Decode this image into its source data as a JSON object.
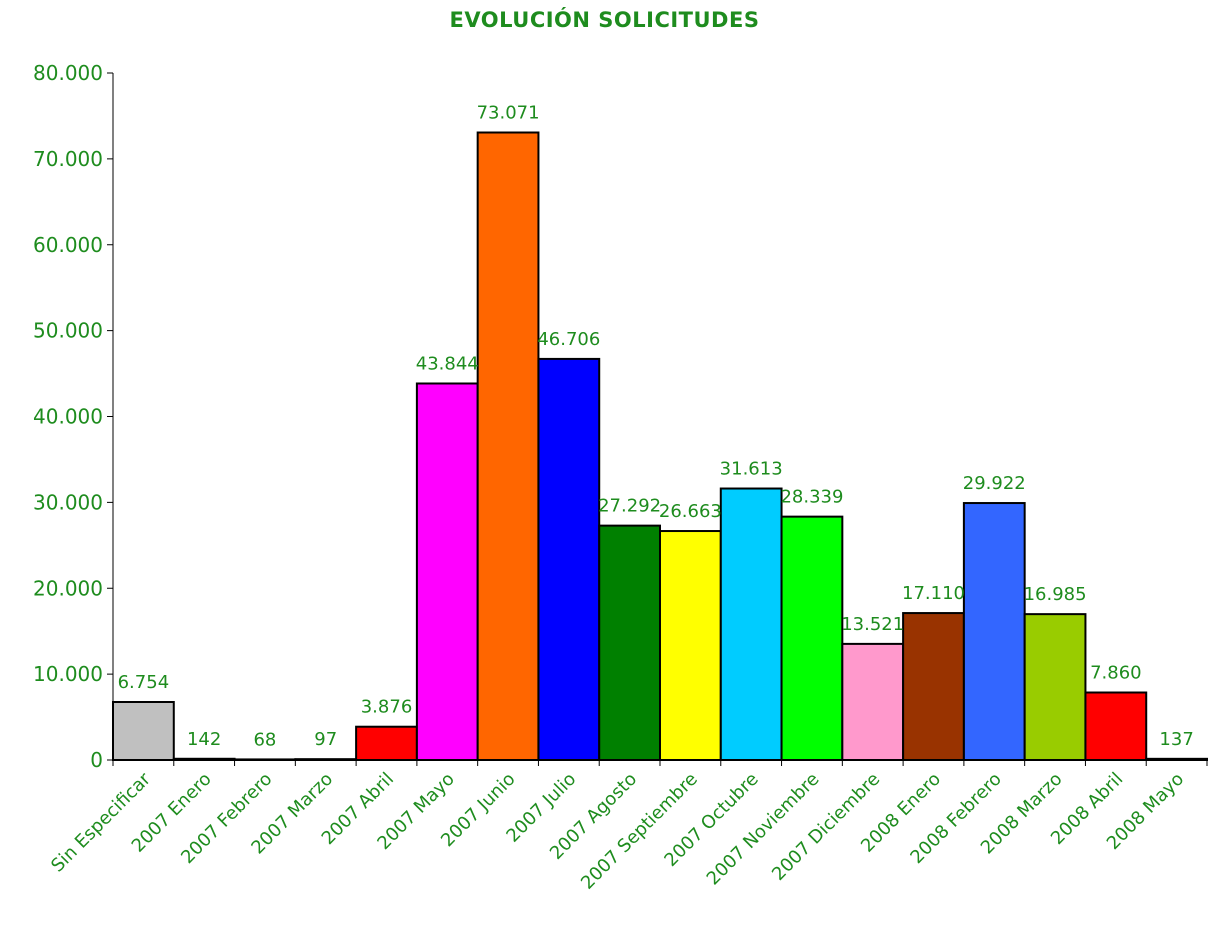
{
  "chart_data": {
    "type": "bar",
    "title": "EVOLUCIÓN SOLICITUDES",
    "xlabel": "",
    "ylabel": "",
    "ylim": [
      0,
      80000
    ],
    "yticks": [
      0,
      10000,
      20000,
      30000,
      40000,
      50000,
      60000,
      70000,
      80000
    ],
    "ytick_labels": [
      "0",
      "10.000",
      "20.000",
      "30.000",
      "40.000",
      "50.000",
      "60.000",
      "70.000",
      "80.000"
    ],
    "grid": false,
    "legend": "none",
    "text_color": "#1e8c1e",
    "categories": [
      "Sin Especificar",
      "2007 Enero",
      "2007 Febrero",
      "2007 Marzo",
      "2007 Abril",
      "2007 Mayo",
      "2007 Junio",
      "2007 Julio",
      "2007 Agosto",
      "2007 Septiembre",
      "2007 Octubre",
      "2007 Noviembre",
      "2007 Diciembre",
      "2008 Enero",
      "2008 Febrero",
      "2008 Marzo",
      "2008 Abril",
      "2008 Mayo"
    ],
    "values": [
      6754,
      142,
      68,
      97,
      3876,
      43844,
      73071,
      46706,
      27292,
      26663,
      31613,
      28339,
      13521,
      17110,
      29922,
      16985,
      7860,
      137
    ],
    "data_labels": [
      "6.754",
      "142",
      "68",
      "97",
      "3.876",
      "43.844",
      "73.071",
      "46.706",
      "27.292",
      "26.663",
      "31.613",
      "28.339",
      "13.521",
      "17.110",
      "29.922",
      "16.985",
      "7.860",
      "137"
    ],
    "colors": [
      "#c0c0c0",
      "#808000",
      "#800080",
      "#008080",
      "#ff0000",
      "#ff00ff",
      "#ff6600",
      "#0000ff",
      "#008000",
      "#ffff00",
      "#00ccff",
      "#00ff00",
      "#ff99cc",
      "#993300",
      "#3366ff",
      "#99cc00",
      "#ff0000",
      "#ffcc00"
    ]
  }
}
